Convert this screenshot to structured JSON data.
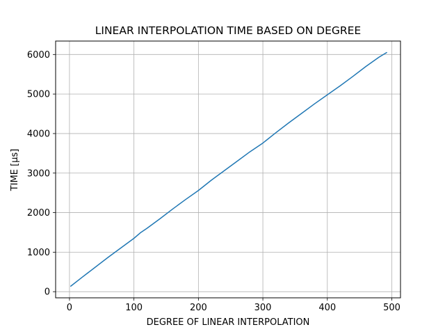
{
  "chart_data": {
    "type": "line",
    "title": "LINEAR INTERPOLATION TIME BASED ON DEGREE",
    "xlabel": "DEGREE OF LINEAR INTERPOLATION",
    "ylabel": "TIME [µs]",
    "xlim": [
      -21.5,
      513.5
    ],
    "ylim": [
      -155,
      6340
    ],
    "xticks": [
      0,
      100,
      200,
      300,
      400,
      500
    ],
    "yticks": [
      0,
      1000,
      2000,
      3000,
      4000,
      5000,
      6000
    ],
    "xtick_labels": [
      "0",
      "100",
      "200",
      "300",
      "400",
      "500"
    ],
    "ytick_labels": [
      "0",
      "1000",
      "2000",
      "3000",
      "4000",
      "5000",
      "6000"
    ],
    "grid": true,
    "colors": {
      "line": "#1f77b4",
      "grid": "#b0b0b0",
      "axes": "#000000"
    },
    "series": [
      {
        "x": [
          2,
          20,
          40,
          60,
          80,
          100,
          110,
          120,
          140,
          160,
          180,
          200,
          220,
          240,
          260,
          280,
          300,
          320,
          340,
          360,
          380,
          400,
          420,
          440,
          460,
          480,
          492
        ],
        "values": [
          140,
          370,
          620,
          870,
          1110,
          1350,
          1490,
          1600,
          1840,
          2090,
          2330,
          2560,
          2820,
          3060,
          3300,
          3540,
          3760,
          4020,
          4270,
          4510,
          4750,
          4980,
          5210,
          5450,
          5700,
          5930,
          6050
        ]
      }
    ]
  }
}
